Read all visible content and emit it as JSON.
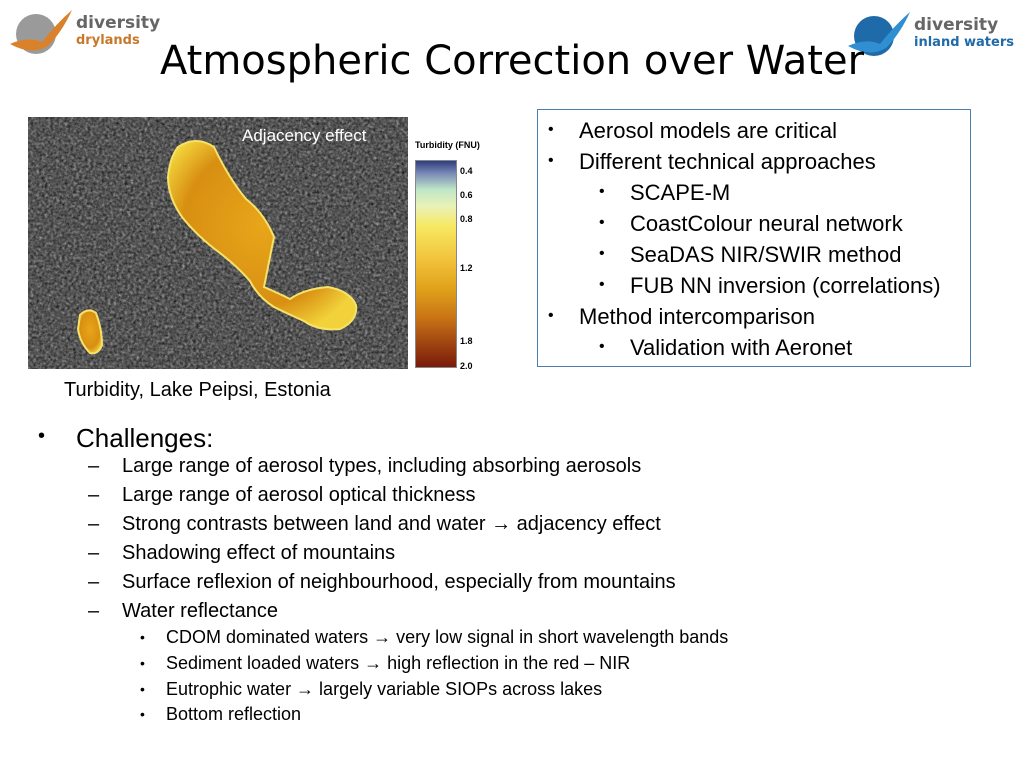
{
  "logos": {
    "left": {
      "line1": "diversity",
      "line2": "drylands"
    },
    "right": {
      "line1": "diversity",
      "line2": "inland waters"
    }
  },
  "title": "Atmospheric Correction over Water",
  "image": {
    "overlay_label": "Adjacency effect",
    "caption": "Turbidity, Lake Peipsi, Estonia"
  },
  "legend": {
    "title": "Turbidity (FNU)",
    "ticks": [
      "0.4",
      "0.6",
      "0.8",
      "1.2",
      "1.8",
      "2.0"
    ]
  },
  "box_bullets": {
    "b1": "Aerosol models are critical",
    "b2": "Different technical approaches",
    "b2a": "SCAPE-M",
    "b2b": "CoastColour neural network",
    "b2c": "SeaDAS NIR/SWIR method",
    "b2d": "FUB NN inversion (correlations)",
    "b3": "Method intercomparison",
    "b3a": "Validation with Aeronet"
  },
  "challenges": {
    "heading": "Challenges:",
    "items": [
      "Large range of aerosol types, including absorbing aerosols",
      "Large range of aerosol optical thickness",
      "Strong contrasts between land and water → adjacency effect",
      "Shadowing effect of mountains",
      "Surface reflexion of neighbourhood, especially from mountains",
      "Water reflectance"
    ],
    "water_items": [
      "CDOM dominated waters → very low signal in short wavelength bands",
      "Sediment loaded waters → high reflection in the red – NIR",
      "Eutrophic water → largely variable SIOPs across lakes",
      "Bottom reflection"
    ]
  }
}
